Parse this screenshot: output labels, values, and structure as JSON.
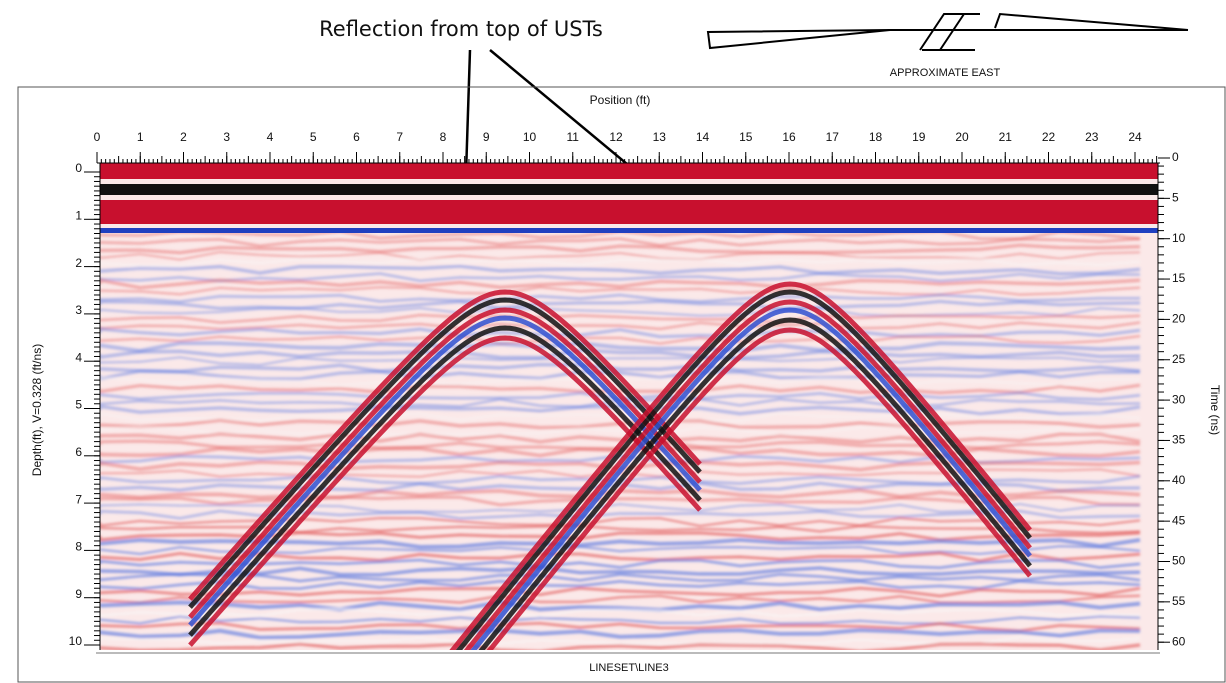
{
  "annotation": "Reflection from top of USTs",
  "direction_label": "APPROXIMATE EAST",
  "x_axis": {
    "label": "Position (ft)",
    "ticks": [
      0,
      1,
      2,
      3,
      4,
      5,
      6,
      7,
      8,
      9,
      10,
      11,
      12,
      13,
      14,
      15,
      16,
      17,
      18,
      19,
      20,
      21,
      22,
      23,
      24
    ]
  },
  "depth_axis": {
    "label": "Depth(ft), V=0.328 (ft/ns)",
    "ticks": [
      0,
      1,
      2,
      3,
      4,
      5,
      6,
      7,
      8,
      9,
      10
    ]
  },
  "time_axis": {
    "label": "Time (ns)",
    "ticks": [
      0,
      5,
      10,
      15,
      20,
      25,
      30,
      35,
      40,
      45,
      50,
      55,
      60
    ]
  },
  "line_name": "LINESET\\LINE3"
}
